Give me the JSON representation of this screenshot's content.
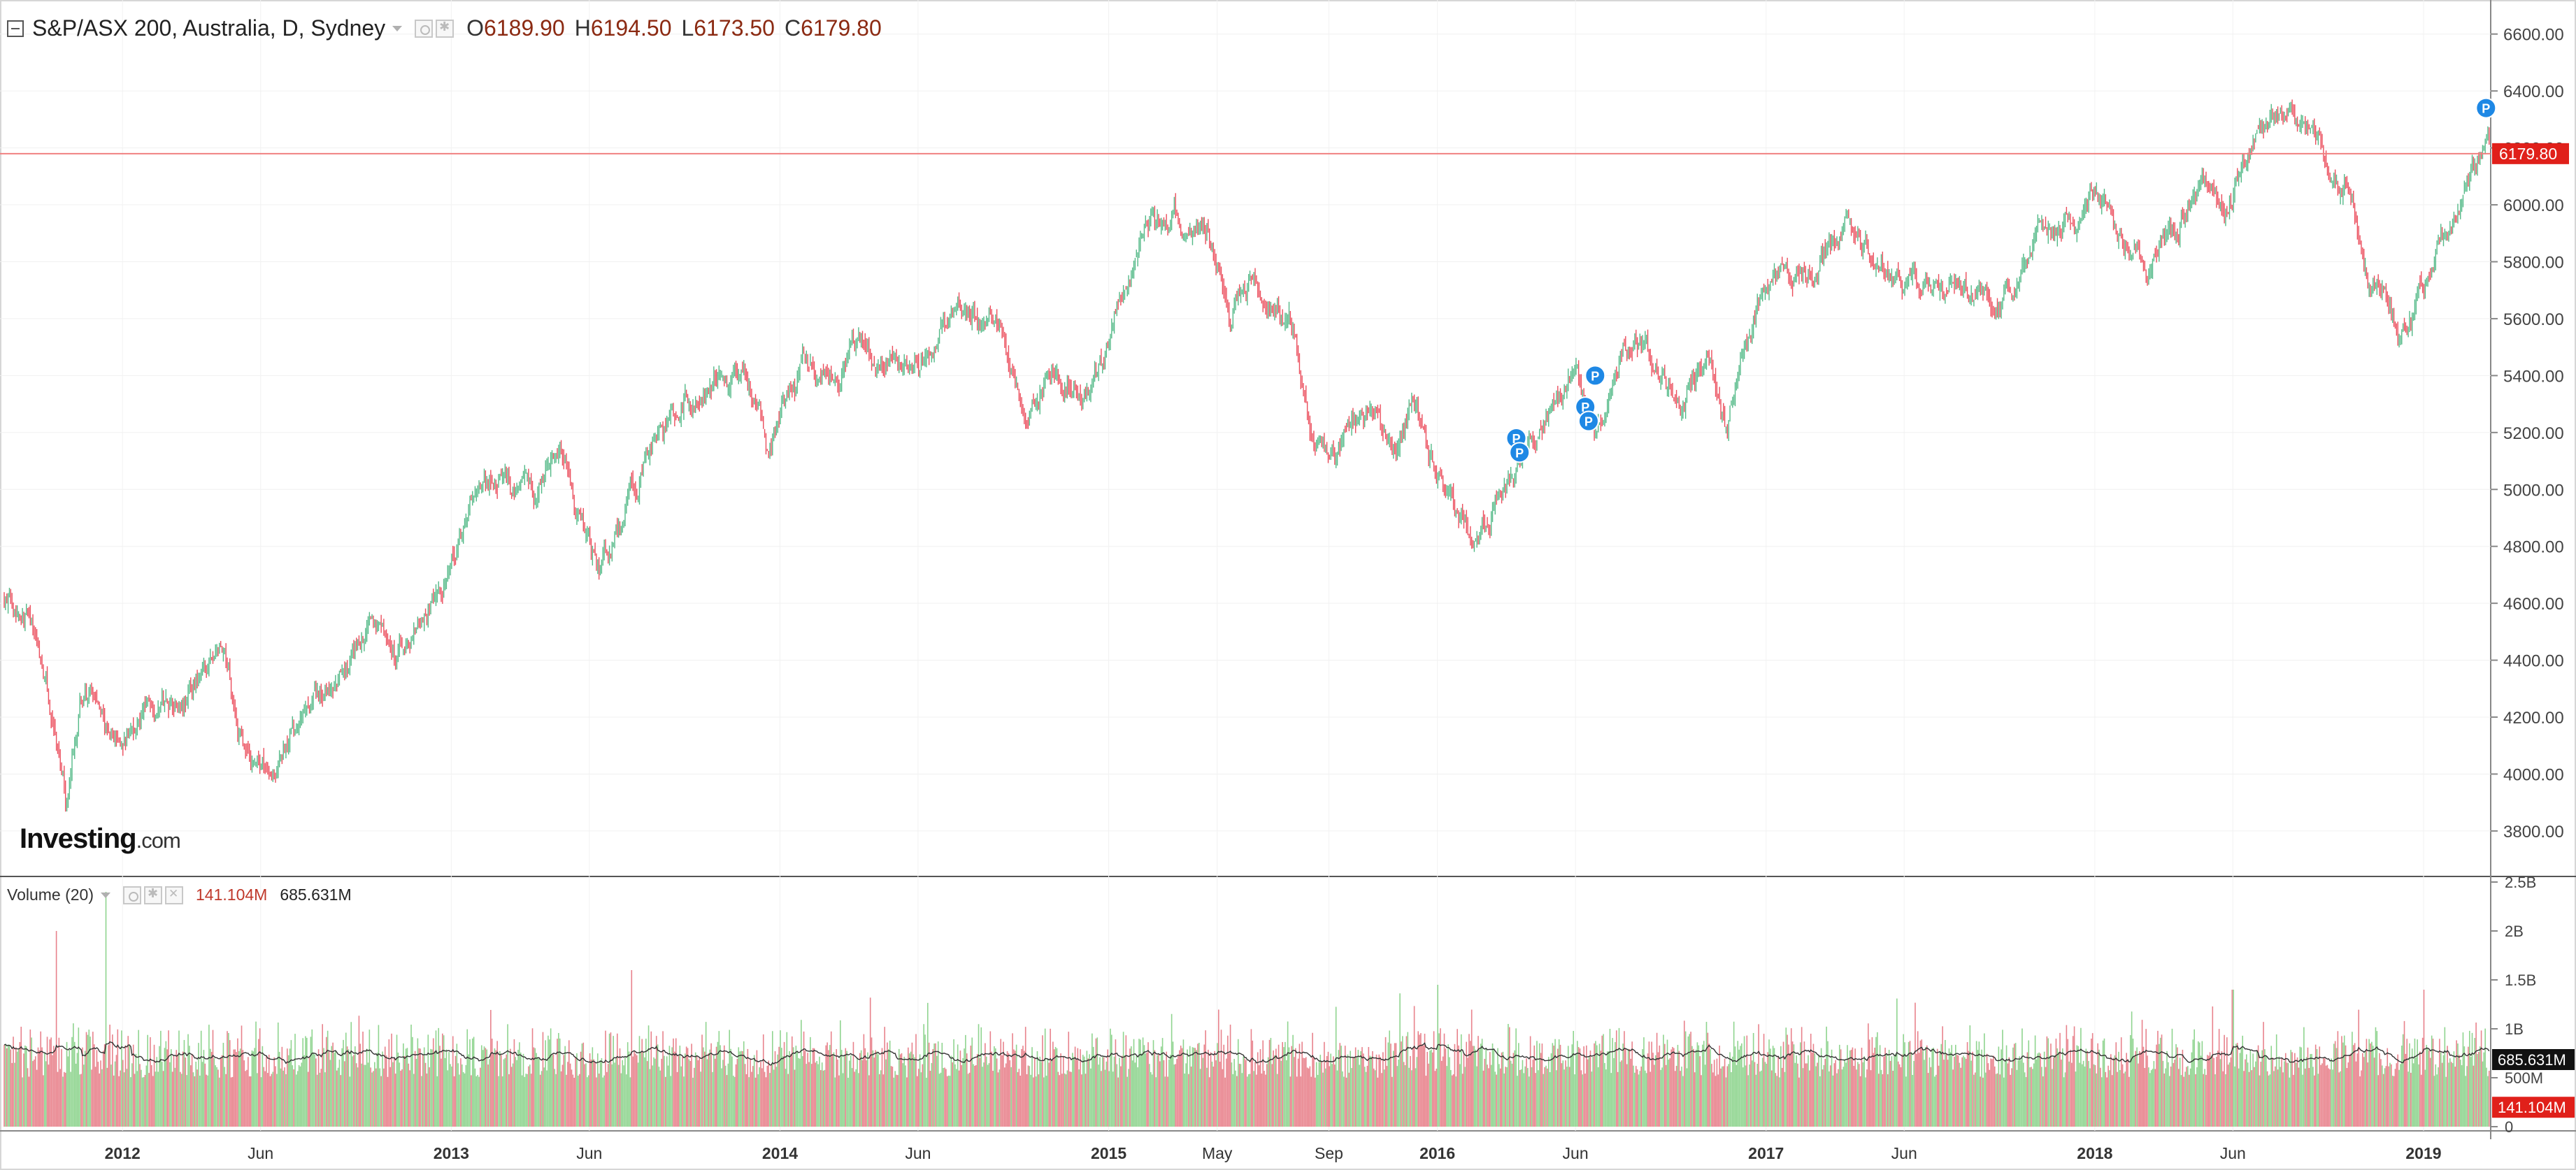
{
  "header": {
    "title": "S&P/ASX 200, Australia, D, Sydney",
    "ohlc": [
      {
        "label": "O",
        "value": "6189.90"
      },
      {
        "label": "H",
        "value": "6194.50"
      },
      {
        "label": "L",
        "value": "6173.50"
      },
      {
        "label": "C",
        "value": "6179.80"
      }
    ]
  },
  "volume_header": {
    "title": "Volume (20)",
    "value_a": "141.104M",
    "value_b": "685.631M"
  },
  "logo": {
    "main": "Investing",
    "suffix": ".com"
  },
  "colors": {
    "up": "#53b987",
    "down": "#eb4d5c",
    "up_volume": "#8fd48f",
    "down_volume": "#e8828c",
    "price_line": "#f08080",
    "price_badge": "#e0201a",
    "pin": "#1e88e5"
  },
  "chart_data": [
    {
      "type": "candlestick",
      "title": "S&P/ASX 200, Australia, D, Sydney",
      "ylim": [
        3650,
        6700
      ],
      "y_ticks": [
        "6600.00",
        "6400.00",
        "6200.00",
        "6000.00",
        "5800.00",
        "5600.00",
        "5400.00",
        "5200.00",
        "5000.00",
        "4800.00",
        "4600.00",
        "4400.00",
        "4200.00",
        "4000.00",
        "3800.00"
      ],
      "last_price_label": "6179.80",
      "last_price": 6179.8,
      "x_labels": [
        "2012",
        "Jun",
        "2013",
        "Jun",
        "2014",
        "Jun",
        "2015",
        "May",
        "Sep",
        "2016",
        "Jun",
        "2017",
        "Jun",
        "2018",
        "Jun",
        "2019"
      ],
      "x_label_dates": [
        2012.0,
        2012.42,
        2013.0,
        2013.42,
        2014.0,
        2014.42,
        2015.0,
        2015.33,
        2015.67,
        2016.0,
        2016.42,
        2017.0,
        2017.42,
        2018.0,
        2018.42,
        2019.0
      ],
      "xlim": [
        2011.64,
        2019.2
      ],
      "close_series": [
        [
          2011.64,
          4620
        ],
        [
          2011.7,
          4600
        ],
        [
          2011.75,
          4420
        ],
        [
          2011.79,
          4150
        ],
        [
          2011.83,
          3870
        ],
        [
          2011.87,
          4300
        ],
        [
          2011.92,
          4250
        ],
        [
          2011.96,
          4100
        ],
        [
          2012.0,
          4120
        ],
        [
          2012.08,
          4250
        ],
        [
          2012.17,
          4300
        ],
        [
          2012.25,
          4350
        ],
        [
          2012.3,
          4430
        ],
        [
          2012.38,
          4050
        ],
        [
          2012.46,
          4050
        ],
        [
          2012.55,
          4180
        ],
        [
          2012.65,
          4300
        ],
        [
          2012.75,
          4500
        ],
        [
          2012.83,
          4420
        ],
        [
          2012.92,
          4550
        ],
        [
          2013.0,
          4700
        ],
        [
          2013.08,
          5000
        ],
        [
          2013.16,
          5050
        ],
        [
          2013.25,
          4950
        ],
        [
          2013.33,
          5200
        ],
        [
          2013.4,
          4850
        ],
        [
          2013.45,
          4700
        ],
        [
          2013.5,
          4800
        ],
        [
          2013.58,
          5050
        ],
        [
          2013.67,
          5200
        ],
        [
          2013.75,
          5350
        ],
        [
          2013.83,
          5420
        ],
        [
          2013.92,
          5300
        ],
        [
          2013.96,
          5150
        ],
        [
          2014.0,
          5300
        ],
        [
          2014.08,
          5450
        ],
        [
          2014.17,
          5350
        ],
        [
          2014.25,
          5450
        ],
        [
          2014.33,
          5500
        ],
        [
          2014.42,
          5450
        ],
        [
          2014.5,
          5550
        ],
        [
          2014.6,
          5600
        ],
        [
          2014.67,
          5500
        ],
        [
          2014.75,
          5250
        ],
        [
          2014.83,
          5450
        ],
        [
          2014.92,
          5300
        ],
        [
          2015.0,
          5500
        ],
        [
          2015.1,
          5900
        ],
        [
          2015.2,
          5950
        ],
        [
          2015.3,
          5900
        ],
        [
          2015.37,
          5650
        ],
        [
          2015.45,
          5750
        ],
        [
          2015.55,
          5600
        ],
        [
          2015.62,
          5150
        ],
        [
          2015.67,
          5050
        ],
        [
          2015.72,
          5200
        ],
        [
          2015.8,
          5300
        ],
        [
          2015.87,
          5100
        ],
        [
          2015.92,
          5300
        ],
        [
          2016.0,
          5050
        ],
        [
          2016.08,
          4900
        ],
        [
          2016.12,
          4850
        ],
        [
          2016.2,
          5050
        ],
        [
          2016.28,
          5150
        ],
        [
          2016.35,
          5300
        ],
        [
          2016.42,
          5400
        ],
        [
          2016.48,
          5200
        ],
        [
          2016.55,
          5450
        ],
        [
          2016.6,
          5550
        ],
        [
          2016.67,
          5400
        ],
        [
          2016.75,
          5300
        ],
        [
          2016.83,
          5450
        ],
        [
          2016.88,
          5150
        ],
        [
          2016.92,
          5450
        ],
        [
          2017.0,
          5700
        ],
        [
          2017.08,
          5720
        ],
        [
          2017.16,
          5800
        ],
        [
          2017.25,
          5900
        ],
        [
          2017.33,
          5800
        ],
        [
          2017.42,
          5720
        ],
        [
          2017.5,
          5700
        ],
        [
          2017.58,
          5750
        ],
        [
          2017.67,
          5700
        ],
        [
          2017.75,
          5700
        ],
        [
          2017.83,
          5950
        ],
        [
          2017.92,
          6000
        ],
        [
          2018.0,
          6050
        ],
        [
          2018.08,
          5900
        ],
        [
          2018.16,
          5800
        ],
        [
          2018.25,
          5950
        ],
        [
          2018.33,
          6050
        ],
        [
          2018.42,
          6000
        ],
        [
          2018.5,
          6250
        ],
        [
          2018.58,
          6300
        ],
        [
          2018.65,
          6300
        ],
        [
          2018.7,
          6150
        ],
        [
          2018.78,
          6050
        ],
        [
          2018.83,
          5750
        ],
        [
          2018.88,
          5700
        ],
        [
          2018.92,
          5550
        ],
        [
          2018.97,
          5600
        ],
        [
          2019.0,
          5700
        ],
        [
          2019.05,
          5850
        ],
        [
          2019.1,
          5950
        ],
        [
          2019.15,
          6100
        ],
        [
          2019.2,
          6180
        ]
      ],
      "pins_label": "P",
      "pins": [
        [
          2016.24,
          5180
        ],
        [
          2016.25,
          5130
        ],
        [
          2016.45,
          5290
        ],
        [
          2016.46,
          5240
        ],
        [
          2016.48,
          5400
        ],
        [
          2019.19,
          6340
        ]
      ]
    },
    {
      "type": "bar",
      "title": "Volume (20)",
      "ylim": [
        0,
        2500000000
      ],
      "y_ticks": [
        "2.5B",
        "2B",
        "1.5B",
        "1B",
        "500M",
        "0"
      ],
      "moving_average_label": "685.631M",
      "current_volume_label": "141.104M",
      "average_volume": 685631000,
      "current_volume": 141104000,
      "typical_volume_range": [
        500000000,
        1000000000
      ],
      "volume_spikes": [
        [
          2011.8,
          2000000000
        ],
        [
          2011.95,
          2400000000
        ],
        [
          2013.55,
          1600000000
        ],
        [
          2016.0,
          1450000000
        ],
        [
          2018.42,
          1400000000
        ],
        [
          2019.0,
          1400000000
        ]
      ]
    }
  ]
}
